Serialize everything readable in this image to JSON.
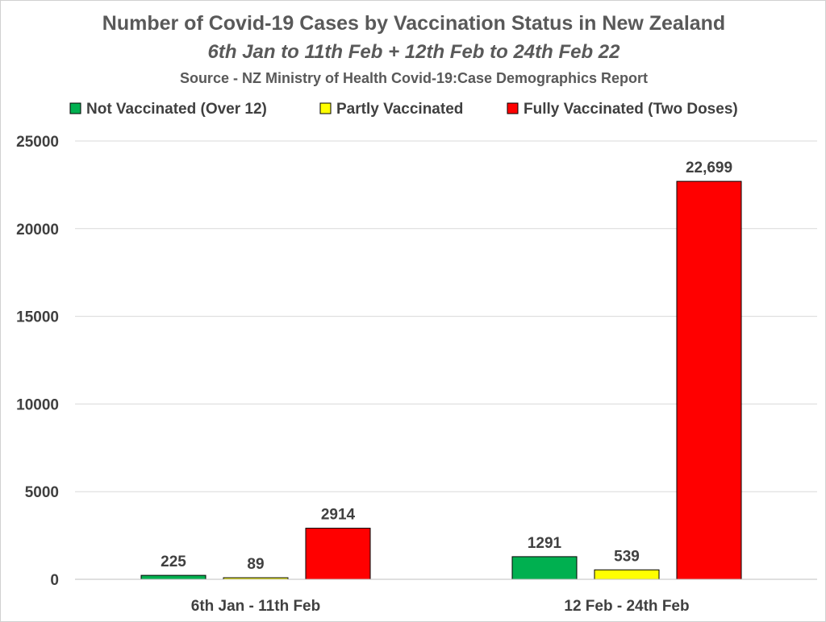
{
  "chart_data": {
    "type": "bar",
    "title": "Number of Covid-19 Cases by Vaccination Status in New Zealand",
    "subtitle": "6th Jan to 11th Feb + 12th Feb to 24th Feb 22",
    "source": "Source - NZ Ministry of Health Covid-19:Case Demographics Report",
    "categories": [
      "6th Jan - 11th Feb",
      "12 Feb - 24th Feb"
    ],
    "series": [
      {
        "name": "Not Vaccinated (Over 12)",
        "color": "#00b050",
        "values": [
          225,
          1291
        ],
        "labels": [
          "225",
          "1291"
        ]
      },
      {
        "name": "Partly Vaccinated",
        "color": "#ffff00",
        "values": [
          89,
          539
        ],
        "labels": [
          "89",
          "539"
        ]
      },
      {
        "name": "Fully Vaccinated (Two Doses)",
        "color": "#ff0000",
        "values": [
          2914,
          22699
        ],
        "labels": [
          "2914",
          "22,699"
        ]
      }
    ],
    "ylim": [
      0,
      25000
    ],
    "yticks": [
      "0",
      "5000",
      "10000",
      "15000",
      "20000",
      "25000"
    ],
    "xlabel": "",
    "ylabel": "",
    "grid": true,
    "legend_position": "top"
  }
}
